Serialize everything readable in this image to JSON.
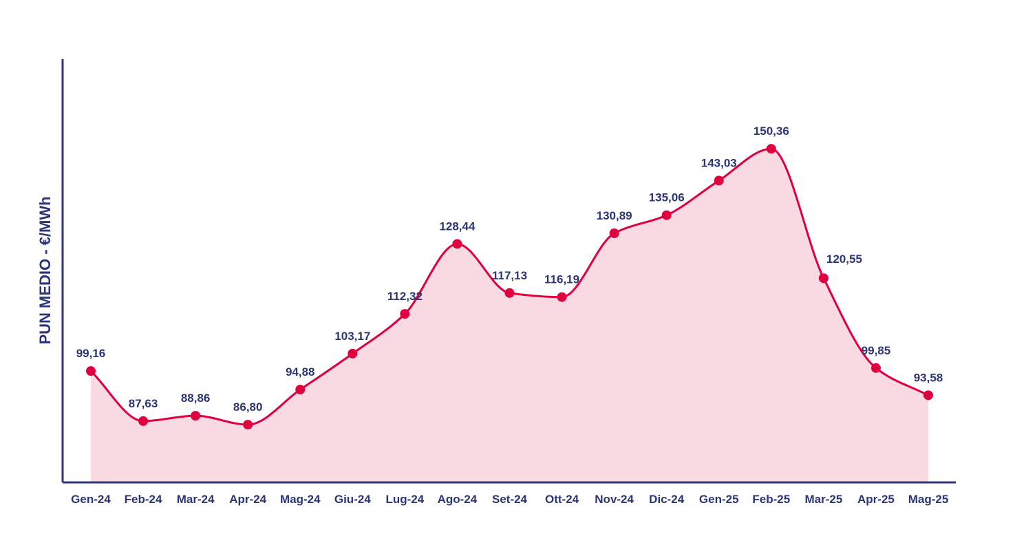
{
  "chart_data": {
    "type": "area",
    "title": "",
    "xlabel": "",
    "ylabel": "PUN MEDIO - €/MWh",
    "categories": [
      "Gen-24",
      "Feb-24",
      "Mar-24",
      "Apr-24",
      "Mag-24",
      "Giu-24",
      "Lug-24",
      "Ago-24",
      "Set-24",
      "Ott-24",
      "Nov-24",
      "Dic-24",
      "Gen-25",
      "Feb-25",
      "Mar-25",
      "Apr-25",
      "Mag-25"
    ],
    "values": [
      99.16,
      87.63,
      88.86,
      86.8,
      94.88,
      103.17,
      112.32,
      128.44,
      117.13,
      116.19,
      130.89,
      135.06,
      143.03,
      150.36,
      120.55,
      99.85,
      93.58
    ],
    "value_labels": [
      "99,16",
      "87,63",
      "88,86",
      "86,80",
      "94,88",
      "103,17",
      "112,32",
      "128,44",
      "117,13",
      "116,19",
      "130,89",
      "135,06",
      "143,03",
      "150,36",
      "120,55",
      "99,85",
      "93,58"
    ],
    "ylim": [
      73.5,
      171
    ],
    "grid": false,
    "legend": "none",
    "colors": {
      "line": "#e0003f",
      "marker": "#e0003f",
      "fill": "#f9d9e2",
      "axis": "#2b3577",
      "text": "#2b3577"
    }
  }
}
